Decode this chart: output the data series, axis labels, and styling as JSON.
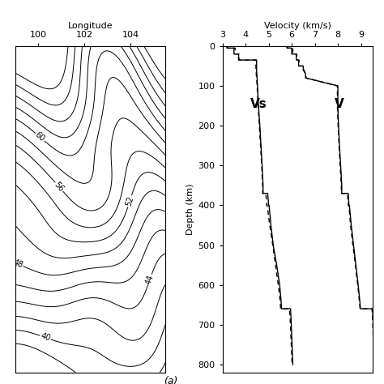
{
  "contour_lon_min": 99.0,
  "contour_lon_max": 105.5,
  "contour_lat_min": 21.0,
  "contour_lat_max": 32.0,
  "contour_levels": [
    38,
    40,
    42,
    44,
    46,
    48,
    50,
    52,
    54,
    56,
    58,
    60,
    62,
    64,
    66,
    68
  ],
  "contour_label_levels": [
    40,
    44,
    48,
    52,
    56,
    60
  ],
  "lon_ticks": [
    100,
    102,
    104
  ],
  "lon_label": "Longitude",
  "depth_label": "Depth (km)",
  "velocity_label": "Velocity (km/s)",
  "panel_a_label": "(a)",
  "panel_b_label": "Vs",
  "panel_c_label": "V",
  "vs_solid_depth": [
    0,
    5,
    5,
    20,
    20,
    35,
    35,
    60,
    80,
    100,
    150,
    200,
    250,
    300,
    350,
    370,
    370,
    400,
    400,
    450,
    500,
    550,
    600,
    640,
    660,
    660,
    680,
    800
  ],
  "vs_solid_vel": [
    3.2,
    3.2,
    3.5,
    3.5,
    3.7,
    3.7,
    4.48,
    4.48,
    4.5,
    4.52,
    4.56,
    4.62,
    4.67,
    4.72,
    4.76,
    4.76,
    4.96,
    5.0,
    5.02,
    5.1,
    5.2,
    5.35,
    5.48,
    5.54,
    5.56,
    5.95,
    5.97,
    6.05
  ],
  "vs_dashed_depth": [
    0,
    5,
    5,
    20,
    20,
    35,
    35,
    60,
    80,
    100,
    150,
    200,
    250,
    300,
    350,
    370,
    370,
    400,
    400,
    450,
    500,
    550,
    600,
    640,
    660,
    660,
    680,
    800
  ],
  "vs_dashed_vel": [
    3.2,
    3.2,
    3.55,
    3.55,
    3.72,
    3.72,
    4.45,
    4.45,
    4.48,
    4.5,
    4.55,
    4.6,
    4.65,
    4.7,
    4.74,
    4.74,
    4.88,
    4.92,
    4.94,
    5.05,
    5.18,
    5.3,
    5.42,
    5.5,
    5.52,
    5.9,
    5.93,
    6.02
  ],
  "vp_solid_depth": [
    0,
    5,
    5,
    20,
    20,
    35,
    35,
    50,
    50,
    60,
    70,
    80,
    100,
    150,
    200,
    250,
    300,
    350,
    370,
    370,
    400,
    400,
    450,
    500,
    550,
    600,
    640,
    660,
    660,
    680,
    800
  ],
  "vp_solid_vel": [
    5.8,
    5.8,
    6.0,
    6.0,
    6.2,
    6.2,
    6.3,
    6.3,
    6.5,
    6.5,
    6.6,
    6.6,
    8.0,
    8.0,
    8.03,
    8.07,
    8.12,
    8.17,
    8.17,
    8.45,
    8.48,
    8.5,
    8.58,
    8.68,
    8.78,
    8.88,
    8.95,
    8.98,
    9.5,
    9.52,
    9.6
  ],
  "vp_dashed_depth": [
    0,
    5,
    5,
    20,
    20,
    35,
    35,
    50,
    50,
    60,
    70,
    80,
    100,
    150,
    200,
    250,
    300,
    350,
    370,
    370,
    400,
    400,
    450,
    500,
    550,
    600,
    640,
    660,
    660,
    680,
    800
  ],
  "vp_dashed_vel": [
    5.8,
    5.8,
    6.05,
    6.05,
    6.22,
    6.22,
    6.32,
    6.32,
    6.52,
    6.52,
    6.62,
    6.62,
    7.98,
    7.98,
    8.01,
    8.05,
    8.1,
    8.15,
    8.15,
    8.42,
    8.45,
    8.48,
    8.55,
    8.65,
    8.76,
    8.86,
    8.93,
    8.96,
    9.48,
    9.5,
    9.58
  ],
  "depth_ylim": [
    820,
    0
  ],
  "vel_xlim": [
    3,
    9.5
  ],
  "vel_xticks": [
    3,
    4,
    5,
    6,
    7,
    8,
    9
  ],
  "depth_yticks": [
    0,
    100,
    200,
    300,
    400,
    500,
    600,
    700,
    800
  ],
  "background_color": "#ffffff",
  "line_color": "#000000"
}
